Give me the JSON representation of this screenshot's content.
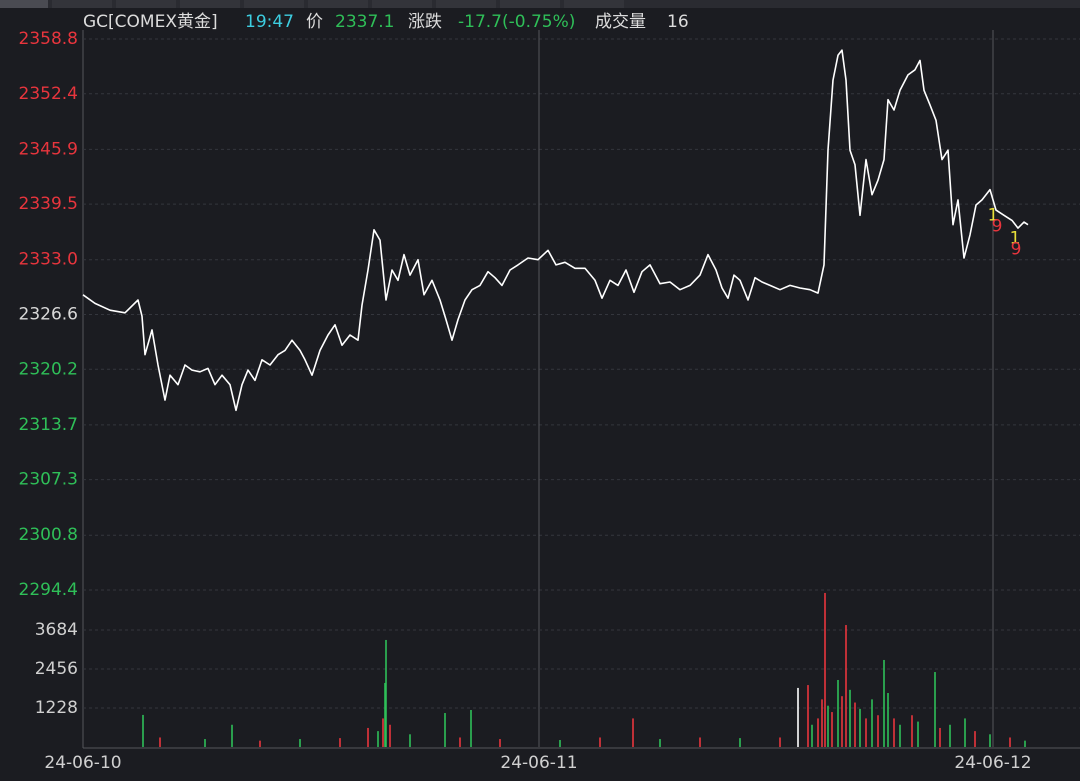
{
  "chart_data": {
    "type": "line",
    "title": "GC[COMEX黄金]",
    "quote": {
      "time": "19:47",
      "price_label": "价",
      "price": 2337.1,
      "change_label": "涨跌",
      "change": "-17.7(-0.75%)",
      "volume_label": "成交量",
      "volume": 16
    },
    "color": "#ffffff",
    "x": [
      0,
      12,
      27,
      42,
      55,
      59,
      62,
      69,
      75,
      82,
      87,
      95,
      102,
      109,
      117,
      125,
      132,
      139,
      147,
      153,
      159,
      165,
      172,
      179,
      187,
      195,
      202,
      209,
      217,
      222,
      229,
      237,
      245,
      252,
      259,
      267,
      275,
      279,
      285,
      291,
      297,
      303,
      309,
      315,
      321,
      327,
      335,
      341,
      349,
      357,
      363,
      369,
      375,
      382,
      389,
      397,
      405,
      412,
      419,
      427,
      435,
      445,
      455,
      465,
      473,
      482,
      492,
      502,
      512,
      519,
      527,
      535,
      543,
      551,
      559,
      567,
      577,
      587,
      597,
      607,
      617,
      625,
      633,
      639,
      645,
      651,
      657,
      665,
      672,
      679,
      687,
      697,
      707,
      717,
      727,
      735,
      741,
      745,
      750,
      755,
      759,
      763,
      767,
      772,
      777,
      783,
      789,
      795,
      801,
      805,
      811,
      817,
      825,
      832,
      837,
      841,
      847,
      853,
      859,
      865,
      870,
      875,
      881,
      887,
      893,
      899,
      907,
      913,
      921,
      929,
      935,
      941,
      945
    ],
    "values": [
      2328.9,
      2327.9,
      2327.1,
      2326.8,
      2328.3,
      2326.4,
      2321.9,
      2324.8,
      2320.7,
      2316.6,
      2319.5,
      2318.4,
      2320.7,
      2320.1,
      2319.9,
      2320.3,
      2318.4,
      2319.5,
      2318.4,
      2315.4,
      2318.4,
      2320.1,
      2318.9,
      2321.3,
      2320.7,
      2321.9,
      2322.4,
      2323.6,
      2322.4,
      2321.3,
      2319.5,
      2322.4,
      2324.2,
      2325.4,
      2323.0,
      2324.2,
      2323.6,
      2327.7,
      2331.8,
      2336.5,
      2335.3,
      2328.3,
      2331.8,
      2330.6,
      2333.6,
      2331.2,
      2333.0,
      2328.9,
      2330.6,
      2328.3,
      2326.0,
      2323.6,
      2326.0,
      2328.3,
      2329.5,
      2330.0,
      2331.6,
      2330.9,
      2330.0,
      2331.8,
      2332.4,
      2333.2,
      2333.0,
      2334.1,
      2332.4,
      2332.7,
      2332.0,
      2332.0,
      2330.6,
      2328.5,
      2330.6,
      2330.0,
      2331.8,
      2329.2,
      2331.6,
      2332.4,
      2330.2,
      2330.4,
      2329.5,
      2330.0,
      2331.2,
      2333.6,
      2331.8,
      2329.7,
      2328.5,
      2331.2,
      2330.6,
      2328.3,
      2330.9,
      2330.4,
      2330.0,
      2329.5,
      2330.0,
      2329.7,
      2329.5,
      2329.1,
      2332.4,
      2345.8,
      2354.0,
      2356.9,
      2357.5,
      2354.0,
      2345.8,
      2344.1,
      2338.2,
      2344.7,
      2340.6,
      2342.3,
      2344.7,
      2351.7,
      2350.5,
      2352.8,
      2354.6,
      2355.2,
      2356.3,
      2352.8,
      2351.1,
      2349.3,
      2344.7,
      2345.8,
      2337.1,
      2340.0,
      2333.2,
      2335.9,
      2339.4,
      2340.0,
      2341.2,
      2338.8,
      2338.2,
      2337.6,
      2336.7,
      2337.4,
      2337.1
    ],
    "xlim": [
      0,
      997
    ],
    "xticks": [
      {
        "value": 0,
        "label": "24-06-10"
      },
      {
        "value": 456,
        "label": "24-06-11"
      },
      {
        "value": 910,
        "label": "24-06-12"
      }
    ],
    "ylim": [
      2294.4,
      2358.8
    ],
    "yticks": [
      2358.8,
      2352.4,
      2345.9,
      2339.5,
      {
        "value": 2333.0,
        "label": "2333.0"
      },
      2326.6,
      2320.2,
      2313.7,
      2307.3,
      2300.8,
      2294.4
    ],
    "ytick_colors": [
      "#e8353d",
      "#e8353d",
      "#e8353d",
      "#e8353d",
      "#e8353d",
      "#d8d8d8",
      "#2fbf58",
      "#2fbf58",
      "#2fbf58",
      "#2fbf58",
      "#2fbf58"
    ],
    "grid": true,
    "annotations": [
      {
        "text": "1",
        "x": 910,
        "y": 2338.2,
        "color": "#e8e03a"
      },
      {
        "text": "9",
        "x": 914,
        "y": 2336.9,
        "color": "#e8353d"
      },
      {
        "text": "1",
        "x": 932,
        "y": 2335.5,
        "color": "#e8e03a"
      },
      {
        "text": "9",
        "x": 933,
        "y": 2334.2,
        "color": "#e8353d"
      }
    ],
    "volume": {
      "type": "bar",
      "x": [
        60,
        77,
        122,
        149,
        177,
        217,
        257,
        285,
        295,
        300,
        302,
        303,
        307,
        327,
        362,
        377,
        388,
        417,
        477,
        517,
        550,
        577,
        617,
        657,
        697,
        715,
        725,
        729,
        735,
        739,
        742,
        745,
        749,
        755,
        759,
        763,
        767,
        772,
        777,
        783,
        789,
        795,
        801,
        805,
        811,
        817,
        829,
        835,
        852,
        857,
        867,
        882,
        892,
        907,
        927,
        942
      ],
      "values": [
        1010,
        300,
        250,
        700,
        200,
        250,
        280,
        600,
        500,
        900,
        2016,
        3370,
        700,
        400,
        1070,
        300,
        1165,
        250,
        220,
        300,
        900,
        250,
        300,
        280,
        300,
        1860,
        1950,
        700,
        900,
        1500,
        4850,
        1300,
        1100,
        2110,
        1600,
        3840,
        1800,
        1400,
        1200,
        900,
        1500,
        1000,
        2740,
        1700,
        900,
        700,
        1000,
        800,
        2360,
        600,
        700,
        900,
        500,
        400,
        300,
        200
      ],
      "colors": [
        "#2fbf58",
        "#e8353d",
        "#2fbf58",
        "#2fbf58",
        "#e8353d",
        "#2fbf58",
        "#e8353d",
        "#e8353d",
        "#2fbf58",
        "#e8353d",
        "#2fbf58",
        "#2fbf58",
        "#e8353d",
        "#2fbf58",
        "#2fbf58",
        "#e8353d",
        "#2fbf58",
        "#e8353d",
        "#2fbf58",
        "#e8353d",
        "#e8353d",
        "#2fbf58",
        "#e8353d",
        "#2fbf58",
        "#e8353d",
        "#ffffff",
        "#e8353d",
        "#2fbf58",
        "#e8353d",
        "#e8353d",
        "#e8353d",
        "#2fbf58",
        "#e8353d",
        "#2fbf58",
        "#e8353d",
        "#e8353d",
        "#2fbf58",
        "#e8353d",
        "#2fbf58",
        "#e8353d",
        "#2fbf58",
        "#e8353d",
        "#2fbf58",
        "#2fbf58",
        "#e8353d",
        "#2fbf58",
        "#e8353d",
        "#2fbf58",
        "#2fbf58",
        "#e8353d",
        "#2fbf58",
        "#2fbf58",
        "#e8353d",
        "#2fbf58",
        "#e8353d",
        "#2fbf58"
      ],
      "ylim": [
        0,
        4880
      ],
      "yticks": [
        1228,
        2456,
        3684
      ]
    }
  }
}
